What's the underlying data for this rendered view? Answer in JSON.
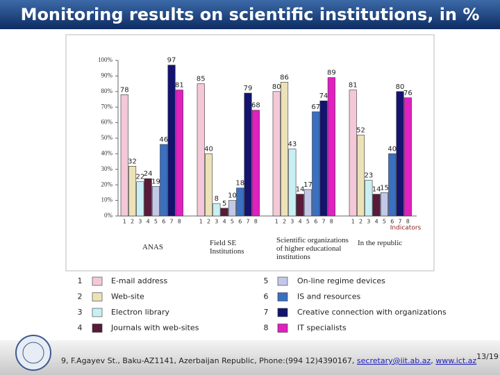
{
  "slide": {
    "title": "Monitoring results on scientific institutions, in %",
    "footer": {
      "address": "9, F.Agayev St., Baku-AZ1141, Azerbaijan Republic, Phone:(994 12)4390167,",
      "email": "secretary@iit.ab.az",
      "separator": ",",
      "website": "www.ict.az"
    },
    "page_number": "13/19"
  },
  "chart_data": {
    "type": "bar",
    "categories": [
      "ANAS",
      "Field SE Institutions",
      "Scientific organizations of higher educational institutions",
      "In the republic"
    ],
    "x_label": "Indicators",
    "indicator_numbers": [
      "1",
      "2",
      "3",
      "4",
      "5",
      "6",
      "7",
      "8"
    ],
    "ylim": [
      0,
      100
    ],
    "yticks": [
      {
        "value": 0,
        "label": "0%"
      },
      {
        "value": 10,
        "label": "10%"
      },
      {
        "value": 20,
        "label": "20%"
      },
      {
        "value": 30,
        "label": "30%"
      },
      {
        "value": 40,
        "label": "40%"
      },
      {
        "value": 50,
        "label": "50%"
      },
      {
        "value": 60,
        "label": "60%"
      },
      {
        "value": 70,
        "label": "70%"
      },
      {
        "value": 80,
        "label": "80%"
      },
      {
        "value": 90,
        "label": "90%"
      },
      {
        "value": 100,
        "label": "100%"
      }
    ],
    "series": [
      {
        "name": "E-mail address",
        "color": "#f4c8d8",
        "values": [
          78,
          85,
          80,
          81
        ]
      },
      {
        "name": "Web-site",
        "color": "#ece2b8",
        "values": [
          32,
          40,
          86,
          52
        ]
      },
      {
        "name": "Electron library",
        "color": "#c8f0f4",
        "values": [
          22,
          8,
          43,
          23
        ]
      },
      {
        "name": "Journals with web-sites",
        "color": "#5a1a3a",
        "values": [
          24,
          5,
          14,
          14
        ]
      },
      {
        "name": "On-line regime devices",
        "color": "#c4c8e8",
        "values": [
          19,
          10,
          17,
          15
        ]
      },
      {
        "name": "IS and resources",
        "color": "#3a70c0",
        "values": [
          46,
          18,
          67,
          40
        ]
      },
      {
        "name": "Creative connection with organizations",
        "color": "#14146e",
        "values": [
          97,
          79,
          74,
          80
        ]
      },
      {
        "name": "IT specialists",
        "color": "#e020c0",
        "values": [
          81,
          68,
          89,
          76
        ]
      }
    ]
  }
}
